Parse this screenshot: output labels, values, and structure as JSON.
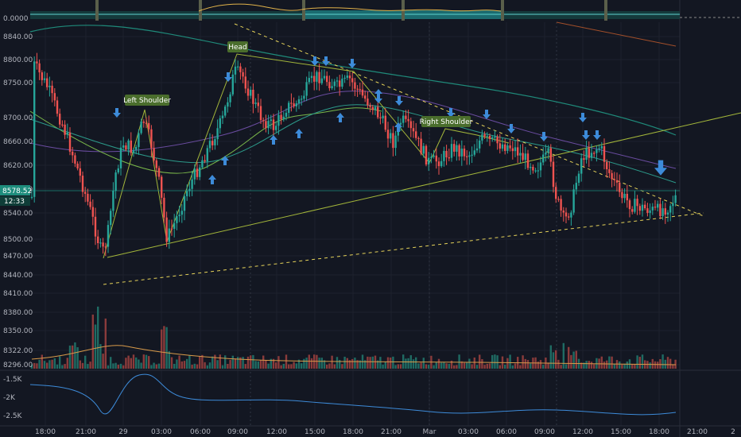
{
  "chart_data": {
    "type": "candlestick",
    "title": "",
    "y_ticks": [
      "8840.00",
      "8800.00",
      "8750.00",
      "8700.00",
      "8660.00",
      "8620.00",
      "8580.00",
      "8540.00",
      "8500.00",
      "8470.00",
      "8440.00",
      "8410.00",
      "8380.00",
      "8350.00",
      "8322.00",
      "8296.00"
    ],
    "x_ticks": [
      "18:00",
      "21:00",
      "29",
      "03:00",
      "06:00",
      "09:00",
      "12:00",
      "15:00",
      "18:00",
      "21:00",
      "Mar",
      "03:00",
      "06:00",
      "09:00",
      "12:00",
      "15:00",
      "18:00",
      "21:00",
      "2"
    ],
    "top_panel_tick": "0.0000",
    "current_price": "8578.52",
    "countdown": "12:33",
    "indicator_ticks": [
      "-1.5K",
      "-2K",
      "-2.5K"
    ],
    "annotations": [
      "Left Shoulder",
      "Head",
      "Right Shoulder"
    ],
    "colors": {
      "up": "#26a69a",
      "down": "#ef5350",
      "background": "#131722",
      "grid": "#1e222d",
      "trendline": "#a3b63a",
      "dashed": "#e6d35a",
      "ma_teal": "#1f8a7a",
      "ma_purple": "#6a4ca0",
      "ma_brown": "#a34f2a",
      "ma_lime": "#7ab84a",
      "arrow": "#3d8bd9",
      "label_bg": "#4a6d2c",
      "volume_ma": "#d89a4a",
      "indicator_line": "#3d8bd9",
      "price_tag": "#1e8d7d"
    }
  }
}
